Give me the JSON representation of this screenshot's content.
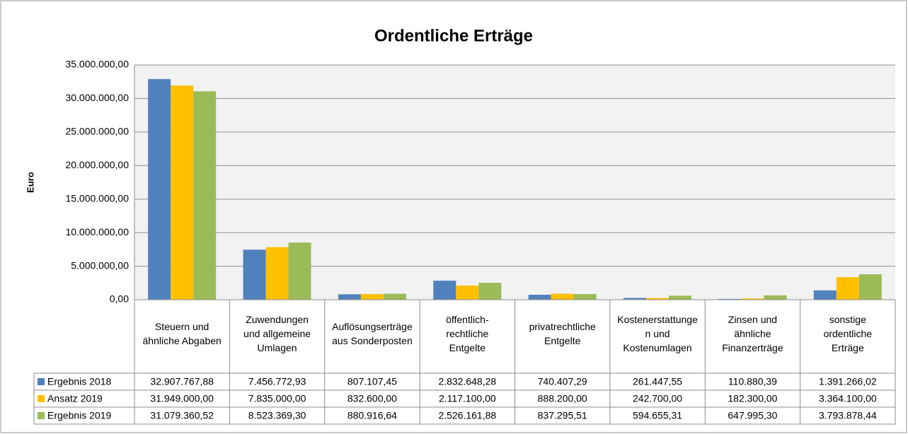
{
  "chart_data": {
    "type": "bar",
    "title": "Ordentliche Erträge",
    "y_label": "Euro",
    "categories": [
      "Steuern und ähnliche Abgaben",
      "Zuwendungen und allgemeine Umlagen",
      "Auflösungserträge aus Sonderposten",
      "öffentlich-rechtliche Entgelte",
      "privatrechtliche Entgelte",
      "Kostenerstattungen und Kostenumlagen",
      "Zinsen und ähnliche Finanzerträge",
      "sonstige ordentliche Erträge"
    ],
    "series": [
      {
        "name": "Ergebnis 2018",
        "color": "#4f81bd",
        "values": [
          32907767.88,
          7456772.93,
          807107.45,
          2832648.28,
          740407.29,
          261447.55,
          110880.39,
          1391266.02
        ],
        "value_labels": [
          "32.907.767,88",
          "7.456.772,93",
          "807.107,45",
          "2.832.648,28",
          "740.407,29",
          "261.447,55",
          "110.880,39",
          "1.391.266,02"
        ]
      },
      {
        "name": "Ansatz 2019",
        "color": "#ffc000",
        "values": [
          31949000,
          7835000,
          832600,
          2117100,
          888200,
          242700,
          182300,
          3364100
        ],
        "value_labels": [
          "31.949.000,00",
          "7.835.000,00",
          "832.600,00",
          "2.117.100,00",
          "888.200,00",
          "242.700,00",
          "182.300,00",
          "3.364.100,00"
        ]
      },
      {
        "name": "Ergebnis 2019",
        "color": "#9bbb59",
        "values": [
          31079360.52,
          8523369.3,
          880916.64,
          2526161.88,
          837295.51,
          594655.31,
          647995.3,
          3793878.44
        ],
        "value_labels": [
          "31.079.360,52",
          "8.523.369,30",
          "880.916,64",
          "2.526.161,88",
          "837.295,51",
          "594.655,31",
          "647.995,30",
          "3.793.878,44"
        ]
      }
    ],
    "ylim": [
      0,
      35000000
    ],
    "yticks": [
      {
        "value": 0,
        "label": "0,00"
      },
      {
        "value": 5000000,
        "label": "5.000.000,00"
      },
      {
        "value": 10000000,
        "label": "10.000.000,00"
      },
      {
        "value": 15000000,
        "label": "15.000.000,00"
      },
      {
        "value": 20000000,
        "label": "20.000.000,00"
      },
      {
        "value": 25000000,
        "label": "25.000.000,00"
      },
      {
        "value": 30000000,
        "label": "30.000.000,00"
      },
      {
        "value": 35000000,
        "label": "35.000.000,00"
      }
    ],
    "grid": true
  }
}
